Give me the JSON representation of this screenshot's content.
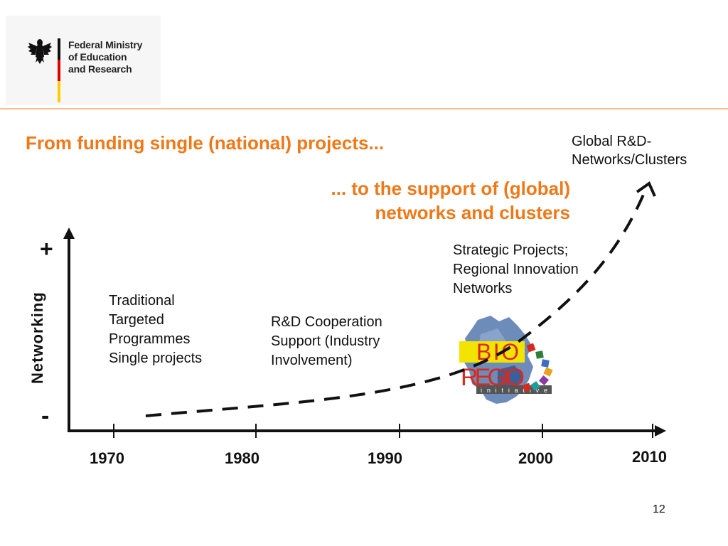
{
  "logo": {
    "line1": "Federal Ministry",
    "line2": "of Education",
    "line3": "and Research"
  },
  "headings": {
    "from": "From funding single (national) projects...",
    "to_line1": "... to the support of (global)",
    "to_line2": "networks and clusters"
  },
  "top_right_label": {
    "line1": "Global R&D-",
    "line2": "Networks/Clusters"
  },
  "stages": {
    "traditional": [
      "Traditional",
      "Targeted",
      "Programmes",
      "Single projects"
    ],
    "cooperation": [
      "R&D Cooperation",
      "Support (Industry",
      "Involvement)"
    ],
    "strategic": [
      "Strategic Projects;",
      "Regional Innovation",
      "Networks"
    ]
  },
  "y_axis": {
    "label": "Networking",
    "plus": "+",
    "minus": "-"
  },
  "x_axis": {
    "years": [
      "1970",
      "1980",
      "1990",
      "2000",
      "2010"
    ]
  },
  "bioregio_logo": {
    "word1": "BIO",
    "word2": "REGIO",
    "tagline": "i n i t i a t i v e"
  },
  "page_number": "12",
  "colors": {
    "accent": "#ef7818",
    "axis": "#111111",
    "flag_black": "#111111",
    "flag_red": "#dd0000",
    "flag_gold": "#ffcc00"
  }
}
